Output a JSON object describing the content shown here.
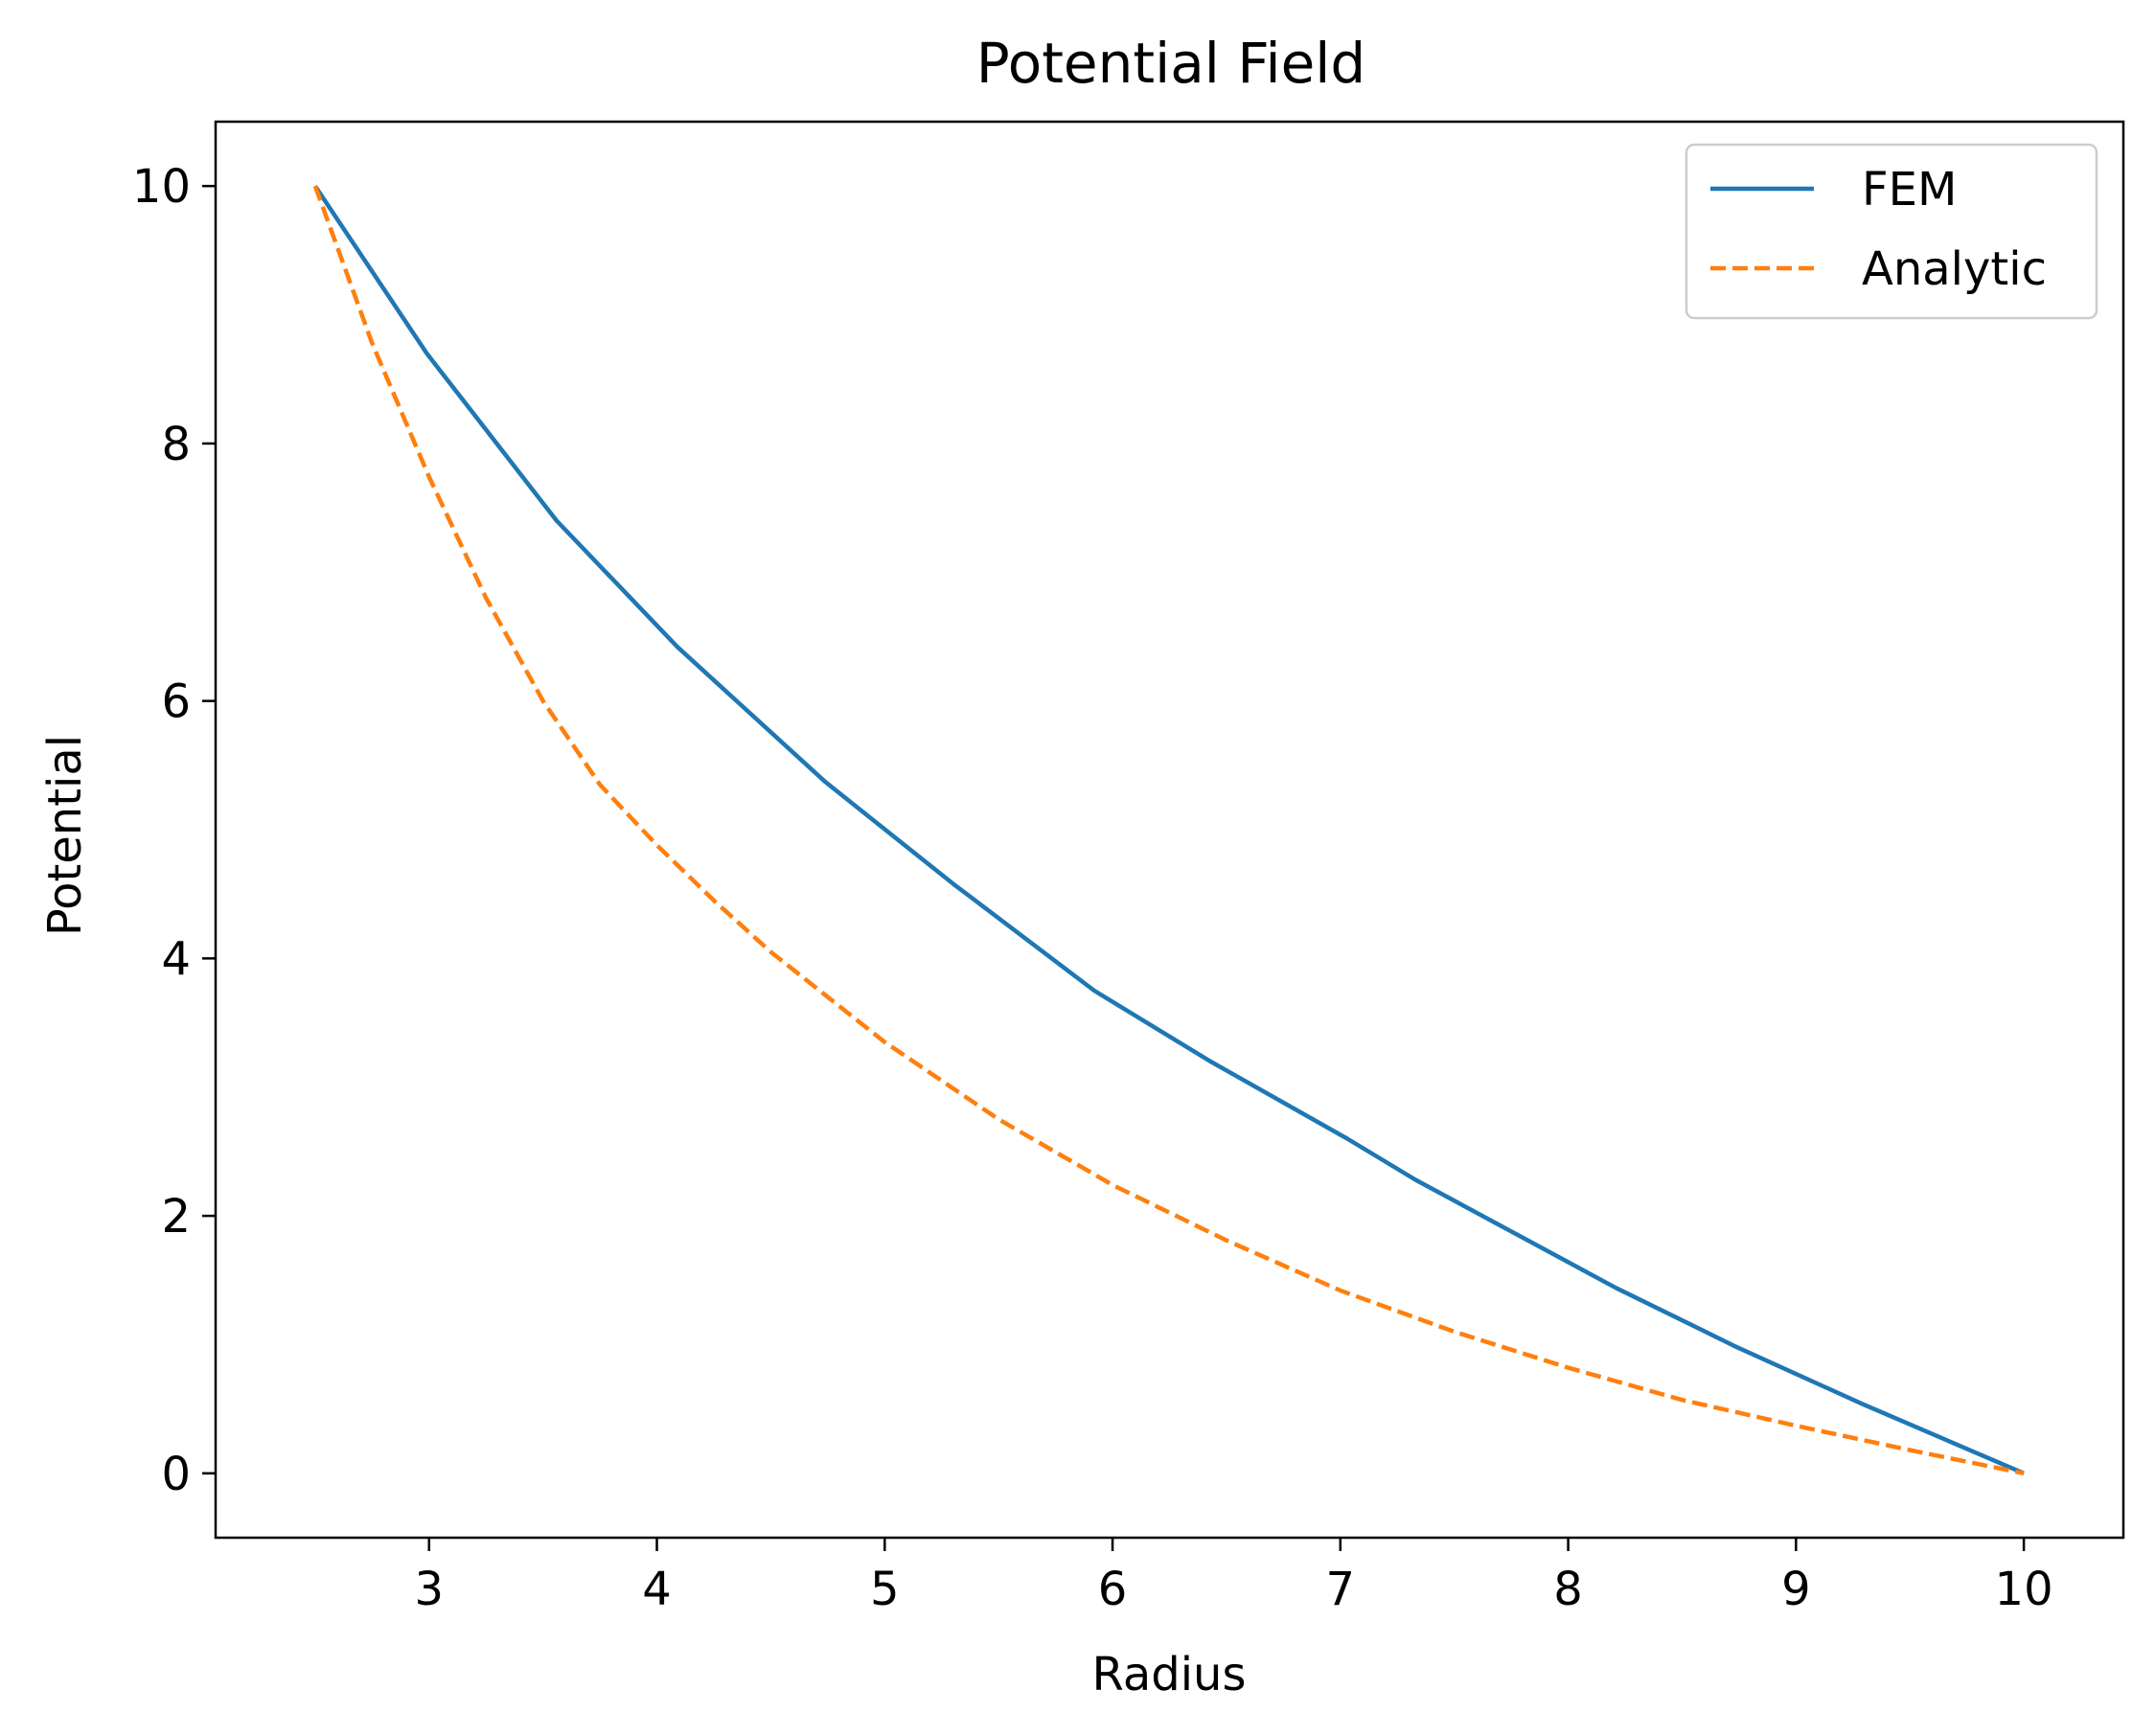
{
  "chart_data": {
    "type": "line",
    "title": "Potential Field",
    "xlabel": "Radius",
    "ylabel": "Potential",
    "xlim": [
      2.063,
      10.437
    ],
    "ylim": [
      -0.5,
      10.5
    ],
    "xticks": [
      3,
      4,
      5,
      6,
      7,
      8,
      9,
      10
    ],
    "yticks": [
      0,
      2,
      4,
      6,
      8,
      10
    ],
    "grid": false,
    "legend": {
      "position": "upper right"
    },
    "series": [
      {
        "name": "FEM",
        "color": "#1f77b4",
        "style": "solid",
        "x": [
          2.5,
          2.99,
          3.56,
          4.09,
          4.74,
          5.3,
          5.92,
          6.43,
          7.03,
          7.33,
          8.21,
          8.74,
          9.29,
          10.0
        ],
        "y": [
          10.0,
          8.7,
          7.4,
          6.42,
          5.37,
          4.58,
          3.75,
          3.2,
          2.6,
          2.28,
          1.44,
          0.98,
          0.54,
          0.0
        ]
      },
      {
        "name": "Analytic",
        "color": "#ff7f0e",
        "style": "dashed",
        "x": [
          2.5,
          2.75,
          3.0,
          3.25,
          3.5,
          3.75,
          4.0,
          4.25,
          4.5,
          5.0,
          5.5,
          6.0,
          6.5,
          7.0,
          7.5,
          8.0,
          8.5,
          9.0,
          9.5,
          10.0
        ],
        "y": [
          10.0,
          8.78,
          7.74,
          6.8,
          6.0,
          5.35,
          4.88,
          4.45,
          4.05,
          3.35,
          2.75,
          2.24,
          1.81,
          1.42,
          1.1,
          0.82,
          0.57,
          0.37,
          0.18,
          0.0
        ]
      }
    ]
  }
}
